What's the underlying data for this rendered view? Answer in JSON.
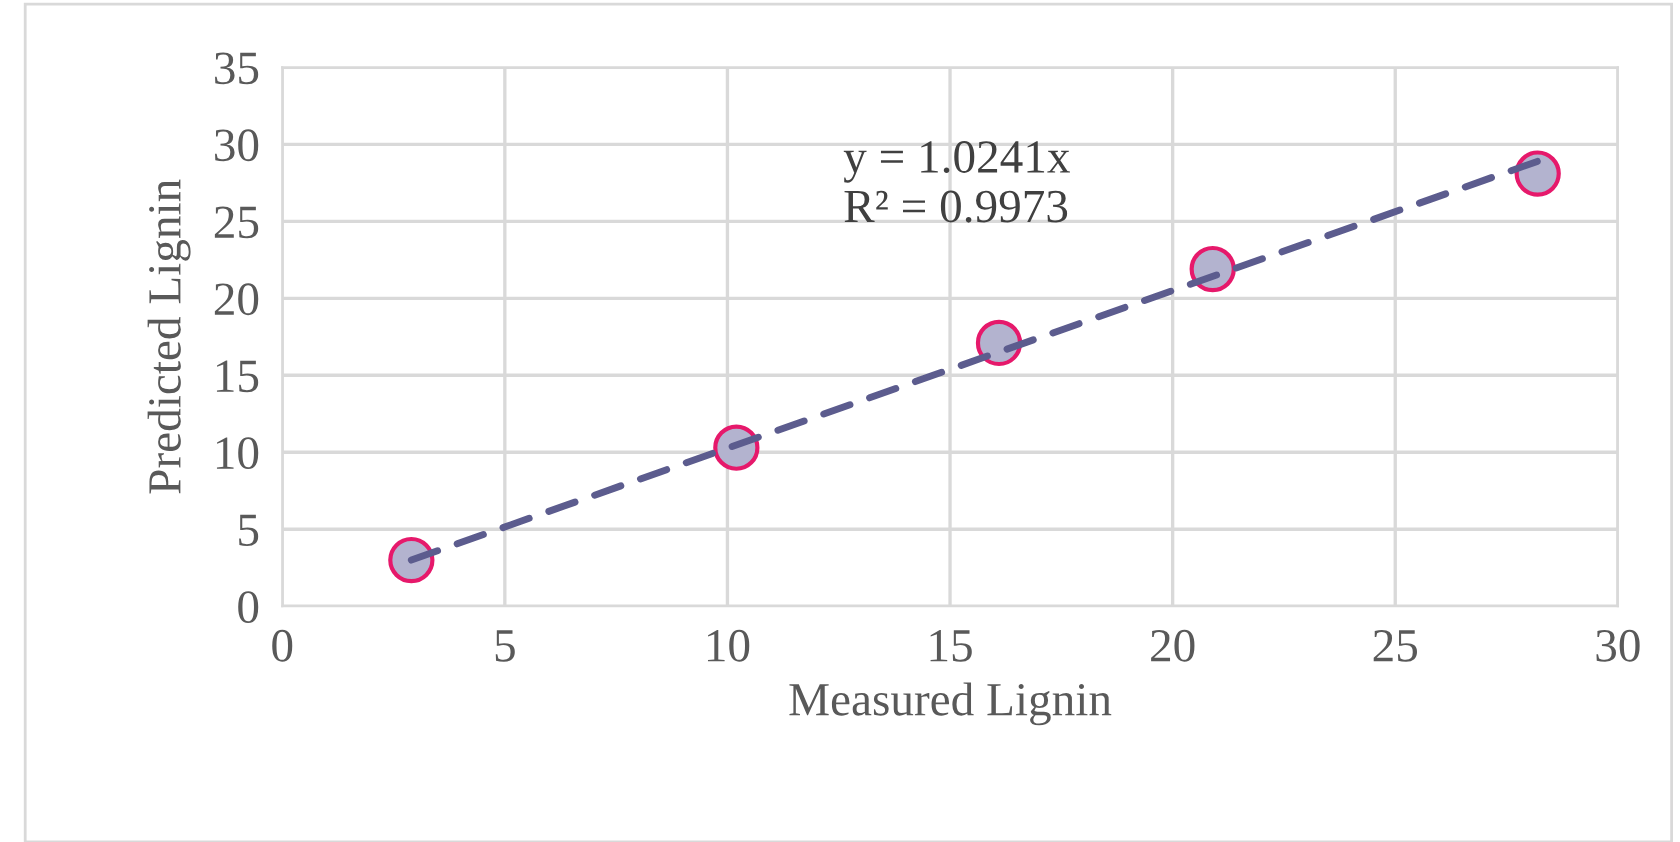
{
  "chart_data": {
    "type": "scatter",
    "xlabel": "Measured Lignin",
    "ylabel": "Predicted Lignin",
    "xlim": [
      0,
      30
    ],
    "xticks": [
      0,
      5,
      10,
      15,
      20,
      25,
      30
    ],
    "ylim": [
      0,
      35
    ],
    "yticks": [
      0,
      5,
      10,
      15,
      20,
      25,
      30,
      35
    ],
    "grid": true,
    "series": [
      {
        "color": "#b3b3cf",
        "marker": "circle",
        "x": [
          2.9,
          10.2,
          16.1,
          20.9,
          28.2
        ],
        "values": [
          3.0,
          10.3,
          17.1,
          21.9,
          28.1
        ]
      },
      {
        "type": "line",
        "color": "#5c5c8e",
        "line_style": "dashed",
        "x": [
          2.9,
          28.2
        ],
        "values": [
          3.0,
          28.9
        ]
      }
    ],
    "annotations": [
      "y = 1.0241x\nR² = 0.9973"
    ]
  }
}
